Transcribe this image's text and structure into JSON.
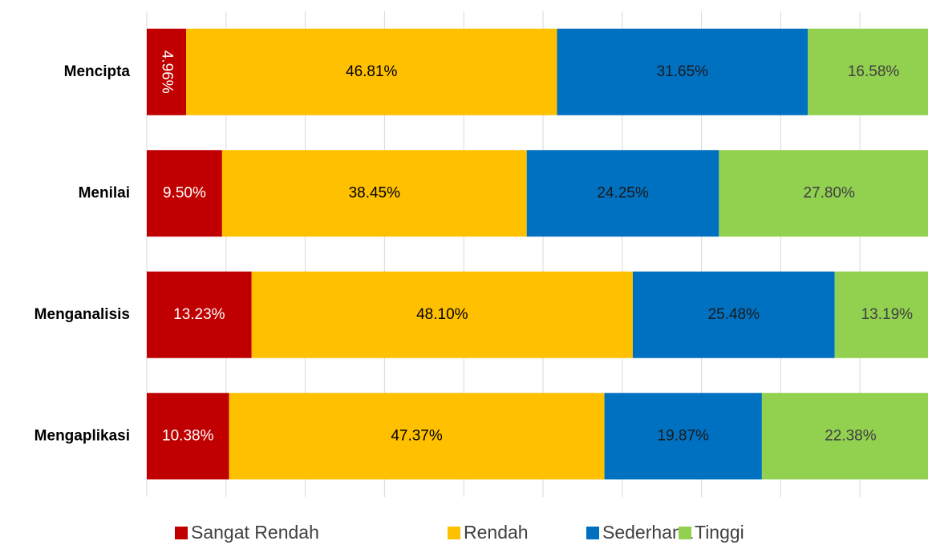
{
  "chart_data": {
    "type": "bar",
    "orientation": "horizontal",
    "stacked": true,
    "categories": [
      "Mencipta",
      "Menilai",
      "Menganalisis",
      "Mengaplikasi"
    ],
    "series": [
      {
        "name": "Sangat Rendah",
        "color": "#c00000",
        "values": [
          4.96,
          9.5,
          13.23,
          10.38
        ],
        "value_labels": [
          "4.96%",
          "9.50%",
          "13.23%",
          "10.38%"
        ]
      },
      {
        "name": "Rendah",
        "color": "#ffc000",
        "values": [
          46.81,
          38.45,
          48.1,
          47.37
        ],
        "value_labels": [
          "46.81%",
          "38.45%",
          "48.10%",
          "47.37%"
        ]
      },
      {
        "name": "Sederhana",
        "color": "#0070c0",
        "values": [
          31.65,
          24.25,
          25.48,
          19.87
        ],
        "value_labels": [
          "31.65%",
          "24.25%",
          "25.48%",
          "19.87%"
        ]
      },
      {
        "name": "Tinggi",
        "color": "#92d050",
        "values": [
          16.58,
          27.8,
          13.19,
          22.38
        ],
        "value_labels": [
          "16.58%",
          "27.80%",
          "13.19%",
          "22.38%"
        ]
      }
    ],
    "xlim": [
      0,
      100
    ],
    "xticks": [
      0,
      10,
      20,
      30,
      40,
      50,
      60,
      70,
      80,
      90,
      100
    ],
    "grid": true,
    "legend": "bottom"
  }
}
